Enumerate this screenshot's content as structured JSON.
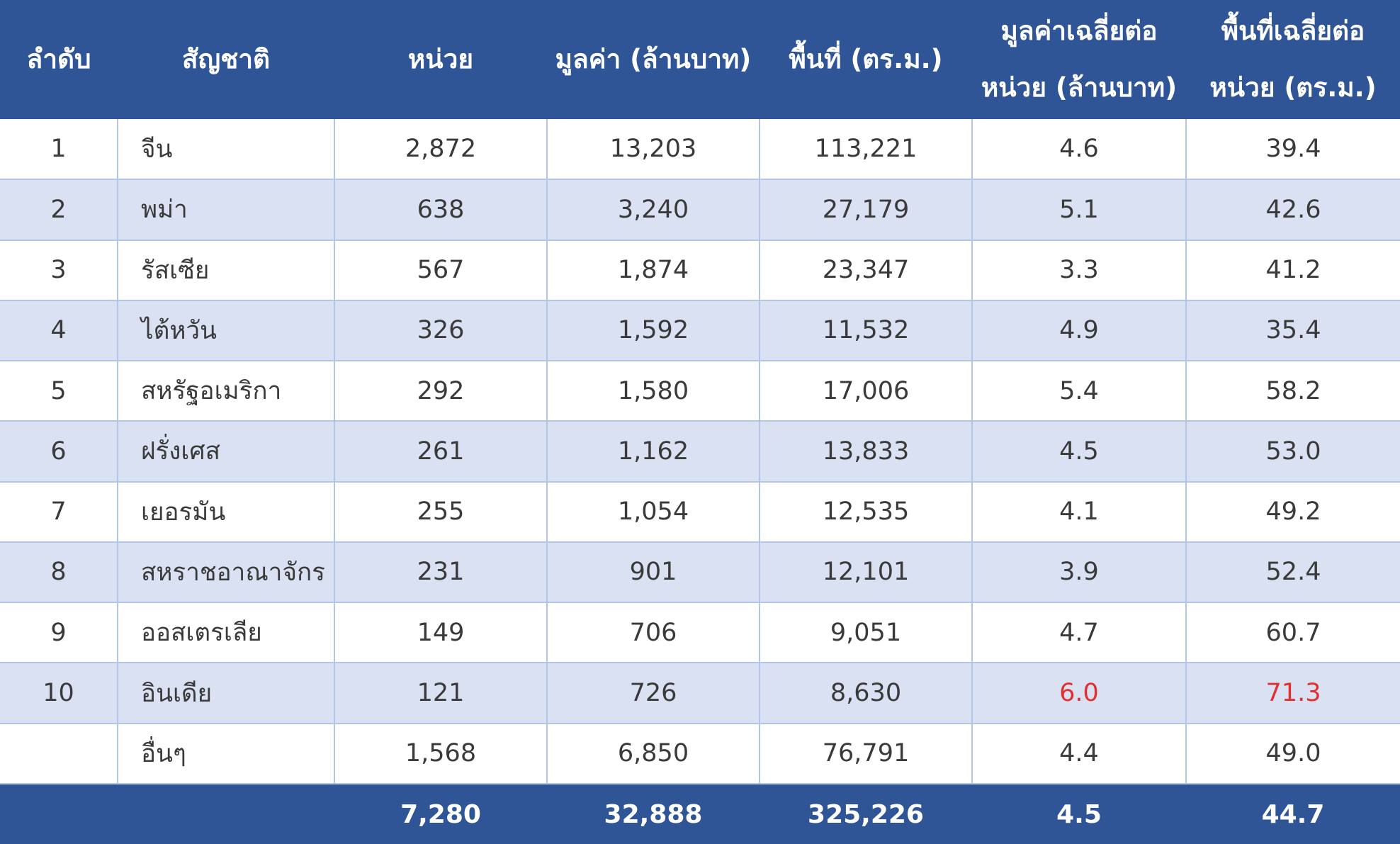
{
  "colors": {
    "header_bg": "#2f5596",
    "stripe_bg": "#d9e1f2",
    "highlight_text": "#e03030"
  },
  "headers": {
    "rank": "ลำดับ",
    "nationality": "สัญชาติ",
    "units": "หน่วย",
    "value": "มูลค่า (ล้านบาท)",
    "area": "พื้นที่ (ตร.ม.)",
    "avg_value_line1": "มูลค่าเฉลี่ยต่อ",
    "avg_value_line2": "หน่วย (ล้านบาท)",
    "avg_area_line1": "พื้นที่เฉลี่ยต่อ",
    "avg_area_line2": "หน่วย (ตร.ม.)"
  },
  "rows": [
    {
      "rank": "1",
      "nationality": "จีน",
      "units": "2,872",
      "value": "13,203",
      "area": "113,221",
      "avg_value": "4.6",
      "avg_area": "39.4"
    },
    {
      "rank": "2",
      "nationality": "พม่า",
      "units": "638",
      "value": "3,240",
      "area": "27,179",
      "avg_value": "5.1",
      "avg_area": "42.6"
    },
    {
      "rank": "3",
      "nationality": "รัสเซีย",
      "units": "567",
      "value": "1,874",
      "area": "23,347",
      "avg_value": "3.3",
      "avg_area": "41.2"
    },
    {
      "rank": "4",
      "nationality": "ไต้หวัน",
      "units": "326",
      "value": "1,592",
      "area": "11,532",
      "avg_value": "4.9",
      "avg_area": "35.4"
    },
    {
      "rank": "5",
      "nationality": "สหรัฐอเมริกา",
      "units": "292",
      "value": "1,580",
      "area": "17,006",
      "avg_value": "5.4",
      "avg_area": "58.2"
    },
    {
      "rank": "6",
      "nationality": "ฝรั่งเศส",
      "units": "261",
      "value": "1,162",
      "area": "13,833",
      "avg_value": "4.5",
      "avg_area": "53.0"
    },
    {
      "rank": "7",
      "nationality": "เยอรมัน",
      "units": "255",
      "value": "1,054",
      "area": "12,535",
      "avg_value": "4.1",
      "avg_area": "49.2"
    },
    {
      "rank": "8",
      "nationality": "สหราชอาณาจักร",
      "units": "231",
      "value": "901",
      "area": "12,101",
      "avg_value": "3.9",
      "avg_area": "52.4"
    },
    {
      "rank": "9",
      "nationality": "ออสเตรเลีย",
      "units": "149",
      "value": "706",
      "area": "9,051",
      "avg_value": "4.7",
      "avg_area": "60.7"
    },
    {
      "rank": "10",
      "nationality": "อินเดีย",
      "units": "121",
      "value": "726",
      "area": "8,630",
      "avg_value": "6.0",
      "avg_area": "71.3"
    },
    {
      "rank": "",
      "nationality": "อื่นๆ",
      "units": "1,568",
      "value": "6,850",
      "area": "76,791",
      "avg_value": "4.4",
      "avg_area": "49.0"
    }
  ],
  "total": {
    "units": "7,280",
    "value": "32,888",
    "area": "325,226",
    "avg_value": "4.5",
    "avg_area": "44.7"
  }
}
